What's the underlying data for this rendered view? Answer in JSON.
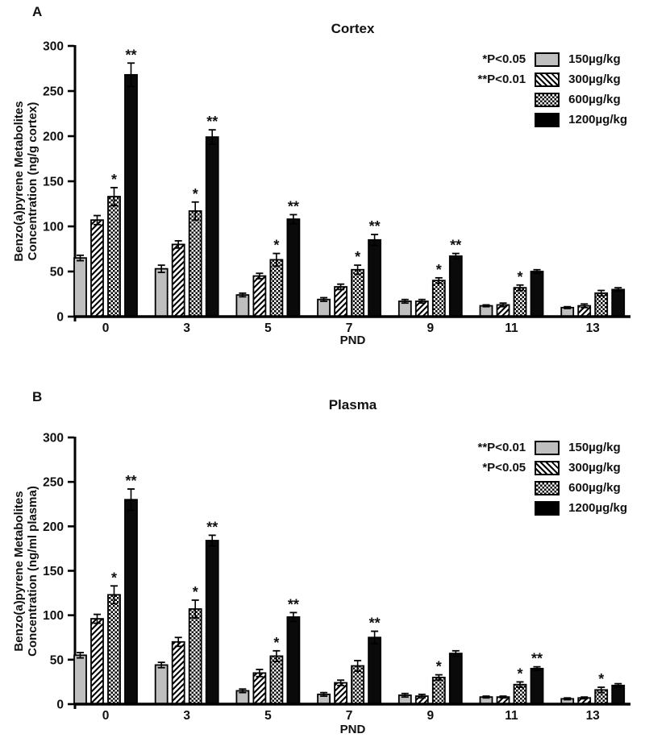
{
  "page": {
    "background": "#ffffff",
    "text_color": "#111111"
  },
  "chart_data": [
    {
      "type": "bar",
      "panel_label": "A",
      "title": "Cortex",
      "xlabel": "PND",
      "ylabel_lines": [
        "Benzo(a)pyrene Metabolites",
        "Concentration (ng/g cortex)"
      ],
      "categories": [
        "0",
        "3",
        "5",
        "7",
        "9",
        "11",
        "13"
      ],
      "ylim": [
        0,
        300
      ],
      "yticks": [
        0,
        50,
        100,
        150,
        200,
        250,
        300
      ],
      "grid": false,
      "legend_position": "top-right",
      "significance_notes": [
        "*P<0.05",
        "**P<0.01"
      ],
      "bar_outline": "#000000",
      "series": [
        {
          "name": "150µg/kg",
          "pattern": "solid-gray",
          "color": "#bfbfbf",
          "values": [
            65,
            53,
            24,
            19,
            17,
            12,
            10
          ],
          "errors": [
            3,
            4,
            2,
            2,
            2,
            1,
            1
          ],
          "sig": [
            "",
            "",
            "",
            "",
            "",
            "",
            ""
          ]
        },
        {
          "name": "300µg/kg",
          "pattern": "diagonal-hatch",
          "color": "#ffffff",
          "values": [
            107,
            80,
            45,
            33,
            17,
            13,
            12
          ],
          "errors": [
            5,
            4,
            3,
            3,
            2,
            2,
            2
          ],
          "sig": [
            "",
            "",
            "",
            "",
            "",
            "",
            ""
          ]
        },
        {
          "name": "600µg/kg",
          "pattern": "checkerboard",
          "color": "#ffffff",
          "values": [
            133,
            117,
            63,
            52,
            40,
            32,
            26
          ],
          "errors": [
            10,
            10,
            7,
            5,
            3,
            3,
            3
          ],
          "sig": [
            "*",
            "*",
            "*",
            "*",
            "*",
            "*",
            ""
          ]
        },
        {
          "name": "1200µg/kg",
          "pattern": "solid-black",
          "color": "#0a0a0a",
          "values": [
            268,
            199,
            108,
            85,
            67,
            50,
            30
          ],
          "errors": [
            13,
            8,
            5,
            6,
            3,
            2,
            2
          ],
          "sig": [
            "**",
            "**",
            "**",
            "**",
            "**",
            "",
            ""
          ]
        }
      ]
    },
    {
      "type": "bar",
      "panel_label": "B",
      "title": "Plasma",
      "xlabel": "PND",
      "ylabel_lines": [
        "Benzo(a)pyrene Metabolites",
        "Concentration (ng/ml plasma)"
      ],
      "categories": [
        "0",
        "3",
        "5",
        "7",
        "9",
        "11",
        "13"
      ],
      "ylim": [
        0,
        300
      ],
      "yticks": [
        0,
        50,
        100,
        150,
        200,
        250,
        300
      ],
      "grid": false,
      "legend_position": "top-right",
      "significance_notes": [
        "**P<0.01",
        "*P<0.05"
      ],
      "bar_outline": "#000000",
      "series": [
        {
          "name": "150µg/kg",
          "pattern": "solid-gray",
          "color": "#bfbfbf",
          "values": [
            55,
            44,
            15,
            11,
            10,
            8,
            6
          ],
          "errors": [
            3,
            3,
            2,
            2,
            2,
            1,
            1
          ],
          "sig": [
            "",
            "",
            "",
            "",
            "",
            "",
            ""
          ]
        },
        {
          "name": "300µg/kg",
          "pattern": "diagonal-hatch",
          "color": "#ffffff",
          "values": [
            96,
            70,
            35,
            24,
            9,
            8,
            7
          ],
          "errors": [
            5,
            5,
            4,
            3,
            2,
            1,
            1
          ],
          "sig": [
            "",
            "",
            "",
            "",
            "",
            "",
            ""
          ]
        },
        {
          "name": "600µg/kg",
          "pattern": "checkerboard",
          "color": "#ffffff",
          "values": [
            123,
            107,
            54,
            43,
            30,
            22,
            16
          ],
          "errors": [
            10,
            10,
            6,
            6,
            3,
            3,
            3
          ],
          "sig": [
            "*",
            "*",
            "*",
            "",
            "*",
            "*",
            "*"
          ]
        },
        {
          "name": "1200µg/kg",
          "pattern": "solid-black",
          "color": "#0a0a0a",
          "values": [
            230,
            184,
            98,
            75,
            57,
            40,
            21
          ],
          "errors": [
            12,
            6,
            5,
            7,
            3,
            2,
            2
          ],
          "sig": [
            "**",
            "**",
            "**",
            "**",
            "",
            "**",
            ""
          ]
        }
      ]
    }
  ]
}
